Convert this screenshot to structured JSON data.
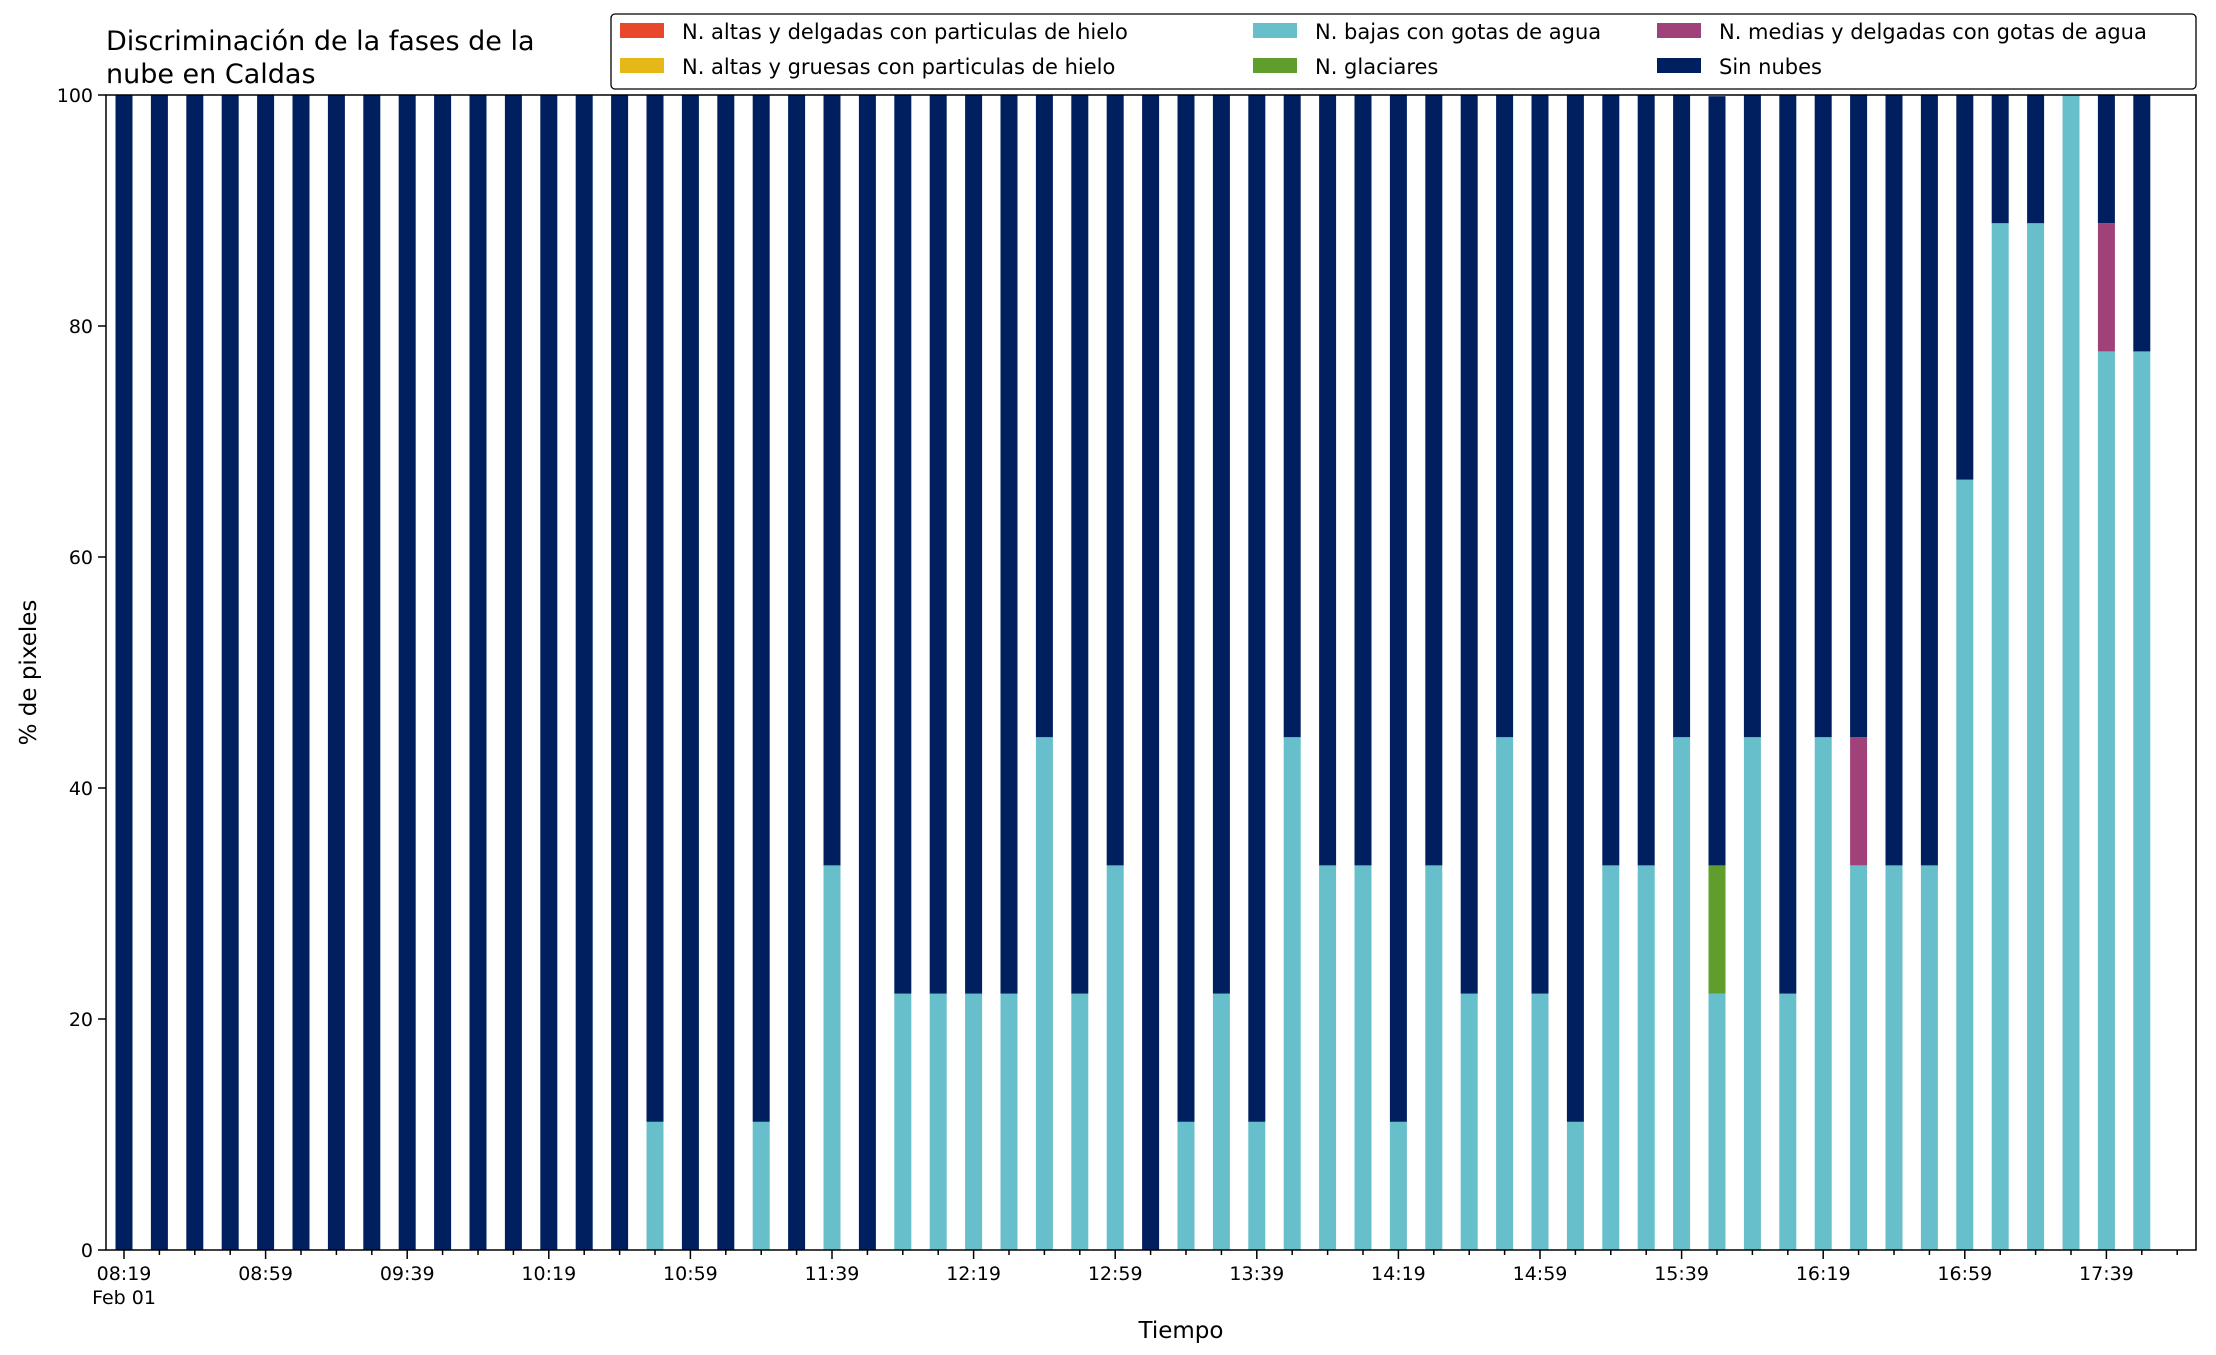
{
  "chart_data": {
    "type": "bar",
    "stacked": true,
    "title": "Discriminación de la fases de la nube en Caldas",
    "title_lines": [
      "Discriminación de la fases de la",
      "nube en Caldas"
    ],
    "xlabel": "Tiempo",
    "ylabel": "% de pixeles",
    "ylim": [
      0,
      100
    ],
    "yticks": [
      0,
      20,
      40,
      60,
      80,
      100
    ],
    "grid": false,
    "legend_position": "top-right",
    "x_start": "08:19",
    "x_start_sublabel": "Feb 01",
    "x_step_minutes": 10,
    "tick_labels": [
      "08:19",
      "08:59",
      "09:39",
      "10:19",
      "10:59",
      "11:39",
      "12:19",
      "12:59",
      "13:39",
      "14:19",
      "14:59",
      "15:39",
      "16:19",
      "16:59",
      "17:39"
    ],
    "colors": {
      "altas_delgadas_hielo": "#e8472b",
      "altas_gruesas_hielo": "#e6b817",
      "bajas_gotas_agua": "#67bfcb",
      "glaciares": "#5f9e2c",
      "medias_delgadas_gotas_agua": "#a0417a",
      "sin_nubes": "#001f5f"
    },
    "legend": [
      {
        "key": "altas_delgadas_hielo",
        "label": "N. altas y delgadas con particulas de hielo"
      },
      {
        "key": "altas_gruesas_hielo",
        "label": "N. altas y gruesas con particulas de hielo"
      },
      {
        "key": "bajas_gotas_agua",
        "label": "N. bajas con gotas de agua"
      },
      {
        "key": "glaciares",
        "label": "N. glaciares"
      },
      {
        "key": "medias_delgadas_gotas_agua",
        "label": "N. medias y delgadas con gotas de agua"
      },
      {
        "key": "sin_nubes",
        "label": "Sin nubes"
      }
    ],
    "series": [
      {
        "key": "altas_delgadas_hielo",
        "name": "N. altas y delgadas con particulas de hielo",
        "values": [
          0,
          0,
          0,
          0,
          0,
          0,
          0,
          0,
          0,
          0,
          0,
          0,
          0,
          0,
          0,
          0,
          0,
          0,
          0,
          0,
          0,
          0,
          0,
          0,
          0,
          0,
          0,
          0,
          0,
          0,
          0,
          0,
          0,
          0,
          0,
          0,
          0,
          0,
          0,
          0,
          0,
          0,
          0,
          0,
          0,
          0,
          0,
          0,
          0,
          0,
          0,
          0,
          0,
          0,
          0,
          0,
          0,
          0
        ]
      },
      {
        "key": "altas_gruesas_hielo",
        "name": "N. altas y gruesas con particulas de hielo",
        "values": [
          0,
          0,
          0,
          0,
          0,
          0,
          0,
          0,
          0,
          0,
          0,
          0,
          0,
          0,
          0,
          0,
          0,
          0,
          0,
          0,
          0,
          0,
          0,
          0,
          0,
          0,
          0,
          0,
          0,
          0,
          0,
          0,
          0,
          0,
          0,
          0,
          0,
          0,
          0,
          0,
          0,
          0,
          0,
          0,
          0,
          0,
          0,
          0,
          0,
          0,
          0,
          0,
          0,
          0,
          0,
          0,
          0,
          0
        ]
      },
      {
        "key": "bajas_gotas_agua",
        "name": "N. bajas con gotas de agua",
        "values": [
          0,
          0,
          0,
          0,
          0,
          0,
          0,
          0,
          0,
          0,
          0,
          0,
          0,
          0,
          0,
          11.1,
          0,
          0,
          11.1,
          0,
          33.3,
          0,
          22.2,
          22.2,
          22.2,
          22.2,
          44.4,
          22.2,
          33.3,
          0,
          11.1,
          22.2,
          11.1,
          44.4,
          33.3,
          33.3,
          11.1,
          33.3,
          22.2,
          44.4,
          22.2,
          11.1,
          33.3,
          33.3,
          44.4,
          22.2,
          44.4,
          22.2,
          44.4,
          33.3,
          33.3,
          33.3,
          66.7,
          88.9,
          88.9,
          100,
          77.8,
          77.8
        ]
      },
      {
        "key": "glaciares",
        "name": "N. glaciares",
        "values": [
          0,
          0,
          0,
          0,
          0,
          0,
          0,
          0,
          0,
          0,
          0,
          0,
          0,
          0,
          0,
          0,
          0,
          0,
          0,
          0,
          0,
          0,
          0,
          0,
          0,
          0,
          0,
          0,
          0,
          0,
          0,
          0,
          0,
          0,
          0,
          0,
          0,
          0,
          0,
          0,
          0,
          0,
          0,
          0,
          0,
          11.1,
          0,
          0,
          0,
          0,
          0,
          0,
          0,
          0,
          0,
          0,
          0,
          0
        ]
      },
      {
        "key": "medias_delgadas_gotas_agua",
        "name": "N. medias y delgadas con gotas de agua",
        "values": [
          0,
          0,
          0,
          0,
          0,
          0,
          0,
          0,
          0,
          0,
          0,
          0,
          0,
          0,
          0,
          0,
          0,
          0,
          0,
          0,
          0,
          0,
          0,
          0,
          0,
          0,
          0,
          0,
          0,
          0,
          0,
          0,
          0,
          0,
          0,
          0,
          0,
          0,
          0,
          0,
          0,
          0,
          0,
          0,
          0,
          0,
          0,
          0,
          0,
          11.1,
          0,
          0,
          0,
          0,
          0,
          0,
          11.1,
          0
        ]
      },
      {
        "key": "sin_nubes",
        "name": "Sin nubes",
        "values": [
          100,
          100,
          100,
          100,
          100,
          100,
          100,
          100,
          100,
          100,
          100,
          100,
          100,
          100,
          100,
          88.9,
          100,
          100,
          88.9,
          100,
          66.7,
          100,
          77.8,
          77.8,
          77.8,
          77.8,
          55.6,
          77.8,
          66.7,
          100,
          88.9,
          77.8,
          88.9,
          55.6,
          66.7,
          66.7,
          88.9,
          66.7,
          77.8,
          55.6,
          77.8,
          88.9,
          66.7,
          66.7,
          55.6,
          66.6,
          55.6,
          77.8,
          55.6,
          55.6,
          66.7,
          66.7,
          33.3,
          11.1,
          11.1,
          0,
          11.1,
          22.2
        ]
      }
    ]
  }
}
